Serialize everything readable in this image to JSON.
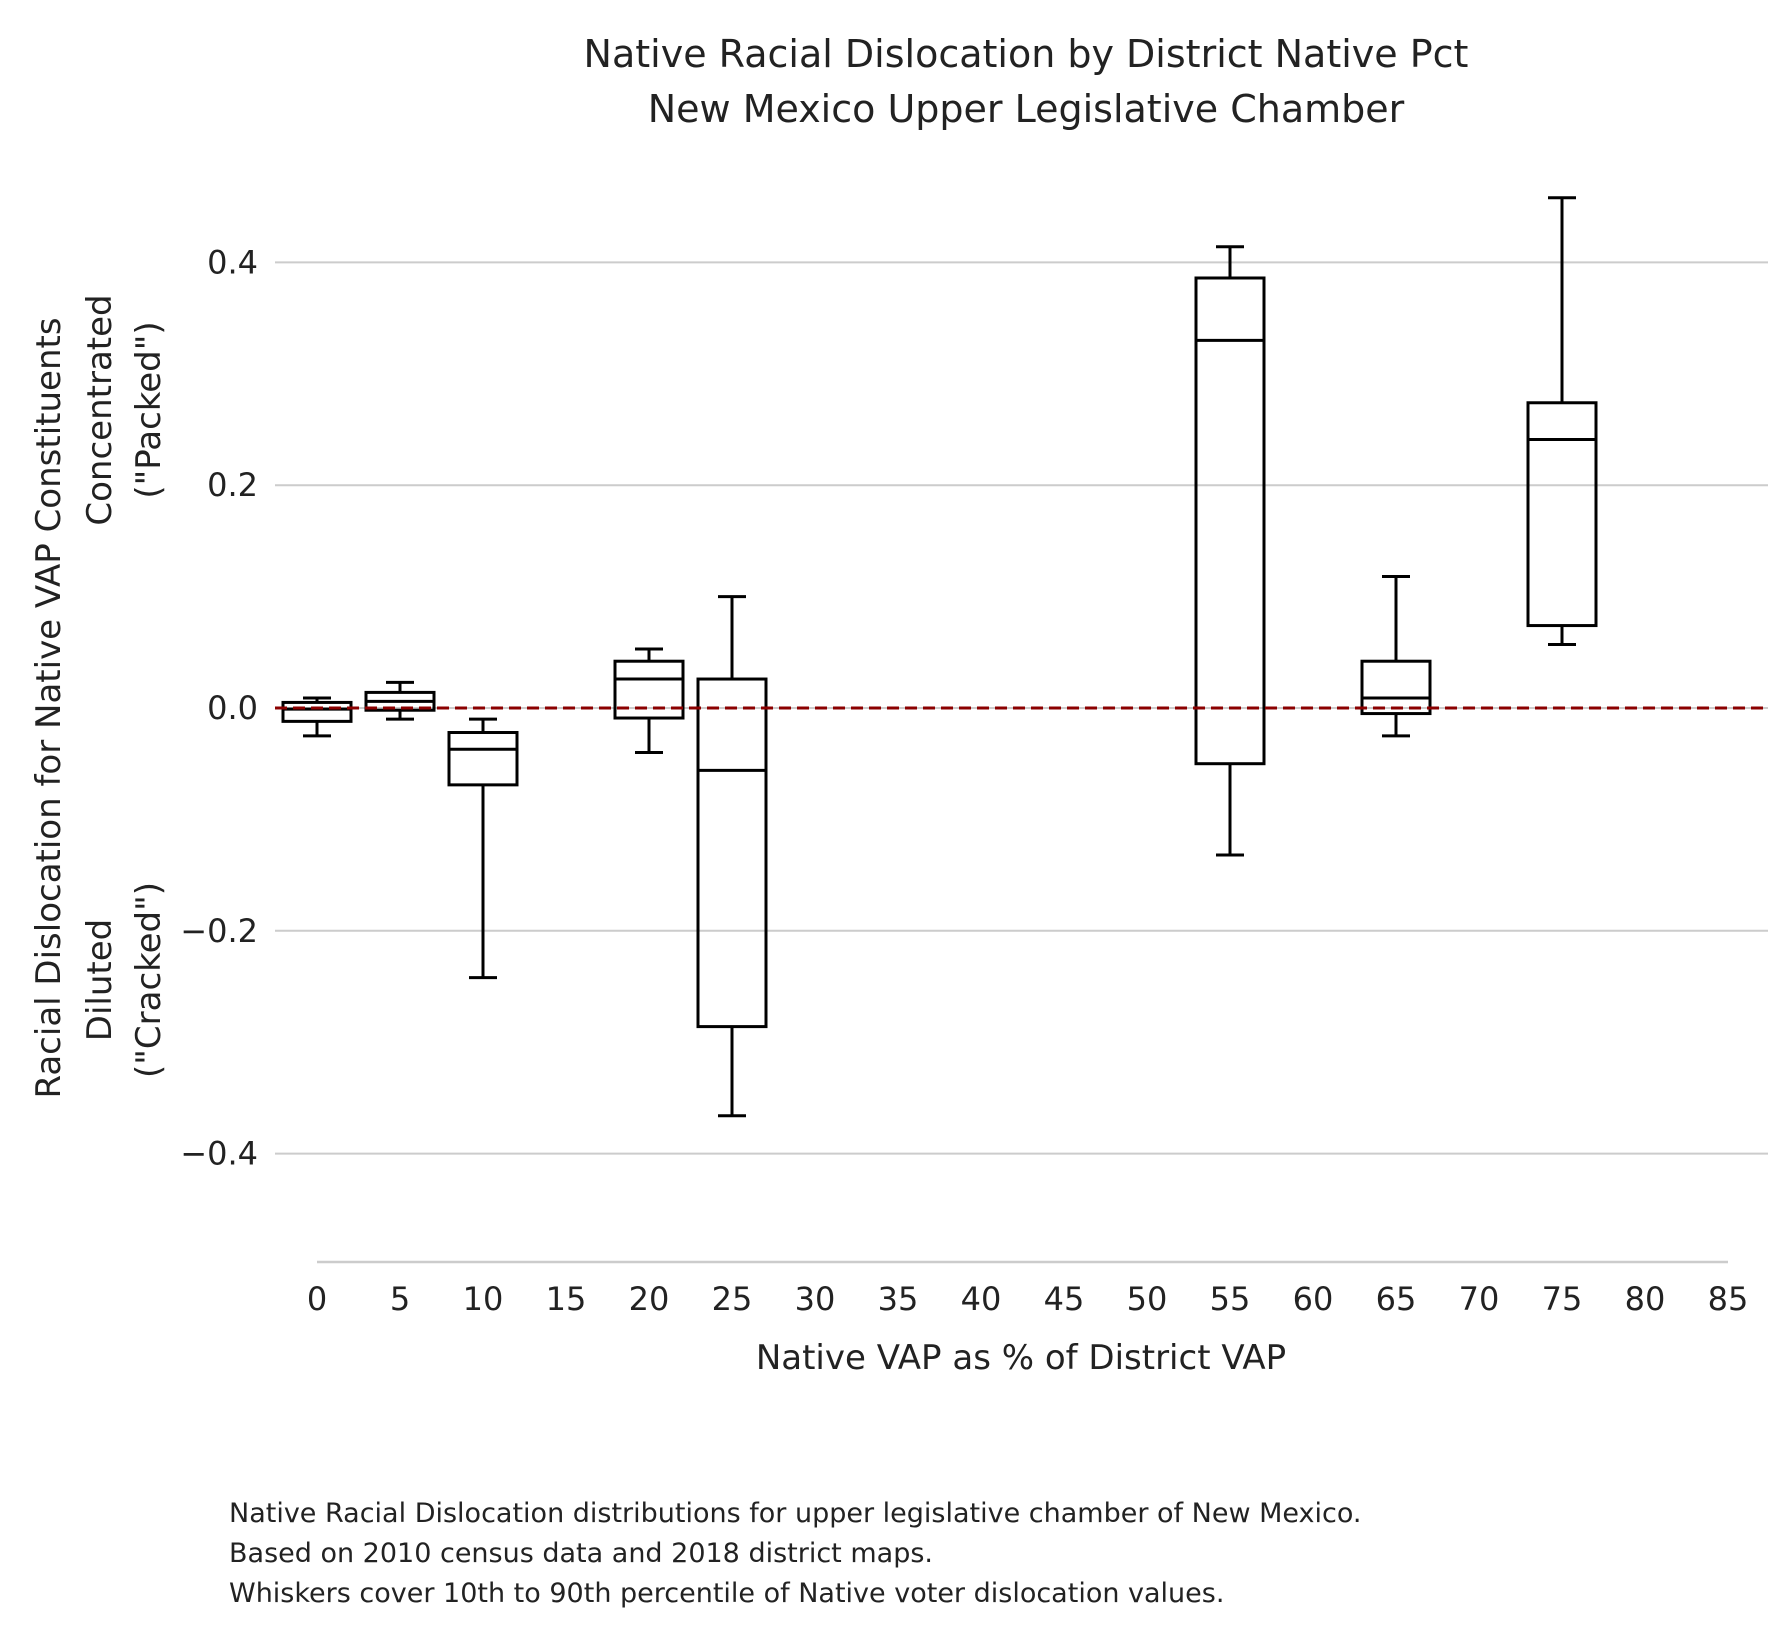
{
  "chart_data": {
    "type": "box",
    "title": [
      "Native Racial Dislocation by District Native Pct",
      "New Mexico Upper Legislative Chamber"
    ],
    "xlabel": "Native VAP as % of District VAP",
    "ylabel": [
      "Racial Dislocation for Native VAP Constituents",
      "Concentrated",
      "(\"Packed\")",
      "Diluted",
      "(\"Cracked\")"
    ],
    "x_ticks": [
      "0",
      "5",
      "10",
      "15",
      "20",
      "25",
      "30",
      "35",
      "40",
      "45",
      "50",
      "55",
      "60",
      "65",
      "70",
      "75",
      "80",
      "85"
    ],
    "y_ticks": [
      "−0.4",
      "−0.2",
      "0.0",
      "0.2",
      "0.4"
    ],
    "y_tick_values": [
      -0.4,
      -0.2,
      0.0,
      0.2,
      0.4
    ],
    "ylim": [
      -0.5,
      0.47
    ],
    "xlim": [
      0,
      85
    ],
    "grid": "horizontal",
    "reference_line": {
      "y": 0.0,
      "style": "dashed",
      "color": "#8b0000"
    },
    "box_color": "#000000",
    "grid_color": "#cccccc",
    "boxes": [
      {
        "x": 0,
        "whisker_low": -0.025,
        "q1": -0.012,
        "median": -0.001,
        "q3": 0.005,
        "whisker_high": 0.009
      },
      {
        "x": 5,
        "whisker_low": -0.01,
        "q1": -0.002,
        "median": 0.006,
        "q3": 0.014,
        "whisker_high": 0.023
      },
      {
        "x": 10,
        "whisker_low": -0.242,
        "q1": -0.069,
        "median": -0.037,
        "q3": -0.022,
        "whisker_high": -0.01
      },
      {
        "x": 20,
        "whisker_low": -0.04,
        "q1": -0.009,
        "median": 0.026,
        "q3": 0.042,
        "whisker_high": 0.053
      },
      {
        "x": 25,
        "whisker_low": -0.366,
        "q1": -0.286,
        "median": -0.056,
        "q3": 0.026,
        "whisker_high": 0.1
      },
      {
        "x": 55,
        "whisker_low": -0.132,
        "q1": -0.05,
        "median": 0.33,
        "q3": 0.386,
        "whisker_high": 0.414
      },
      {
        "x": 65,
        "whisker_low": -0.025,
        "q1": -0.005,
        "median": 0.009,
        "q3": 0.042,
        "whisker_high": 0.118
      },
      {
        "x": 75,
        "whisker_low": 0.057,
        "q1": 0.074,
        "median": 0.241,
        "q3": 0.274,
        "whisker_high": 0.458
      }
    ],
    "caption": [
      "Native Racial Dislocation distributions for upper legislative chamber of New Mexico.",
      "Based on 2010 census data and 2018 district maps.",
      "Whiskers cover 10th to 90th percentile of Native voter dislocation values."
    ]
  }
}
